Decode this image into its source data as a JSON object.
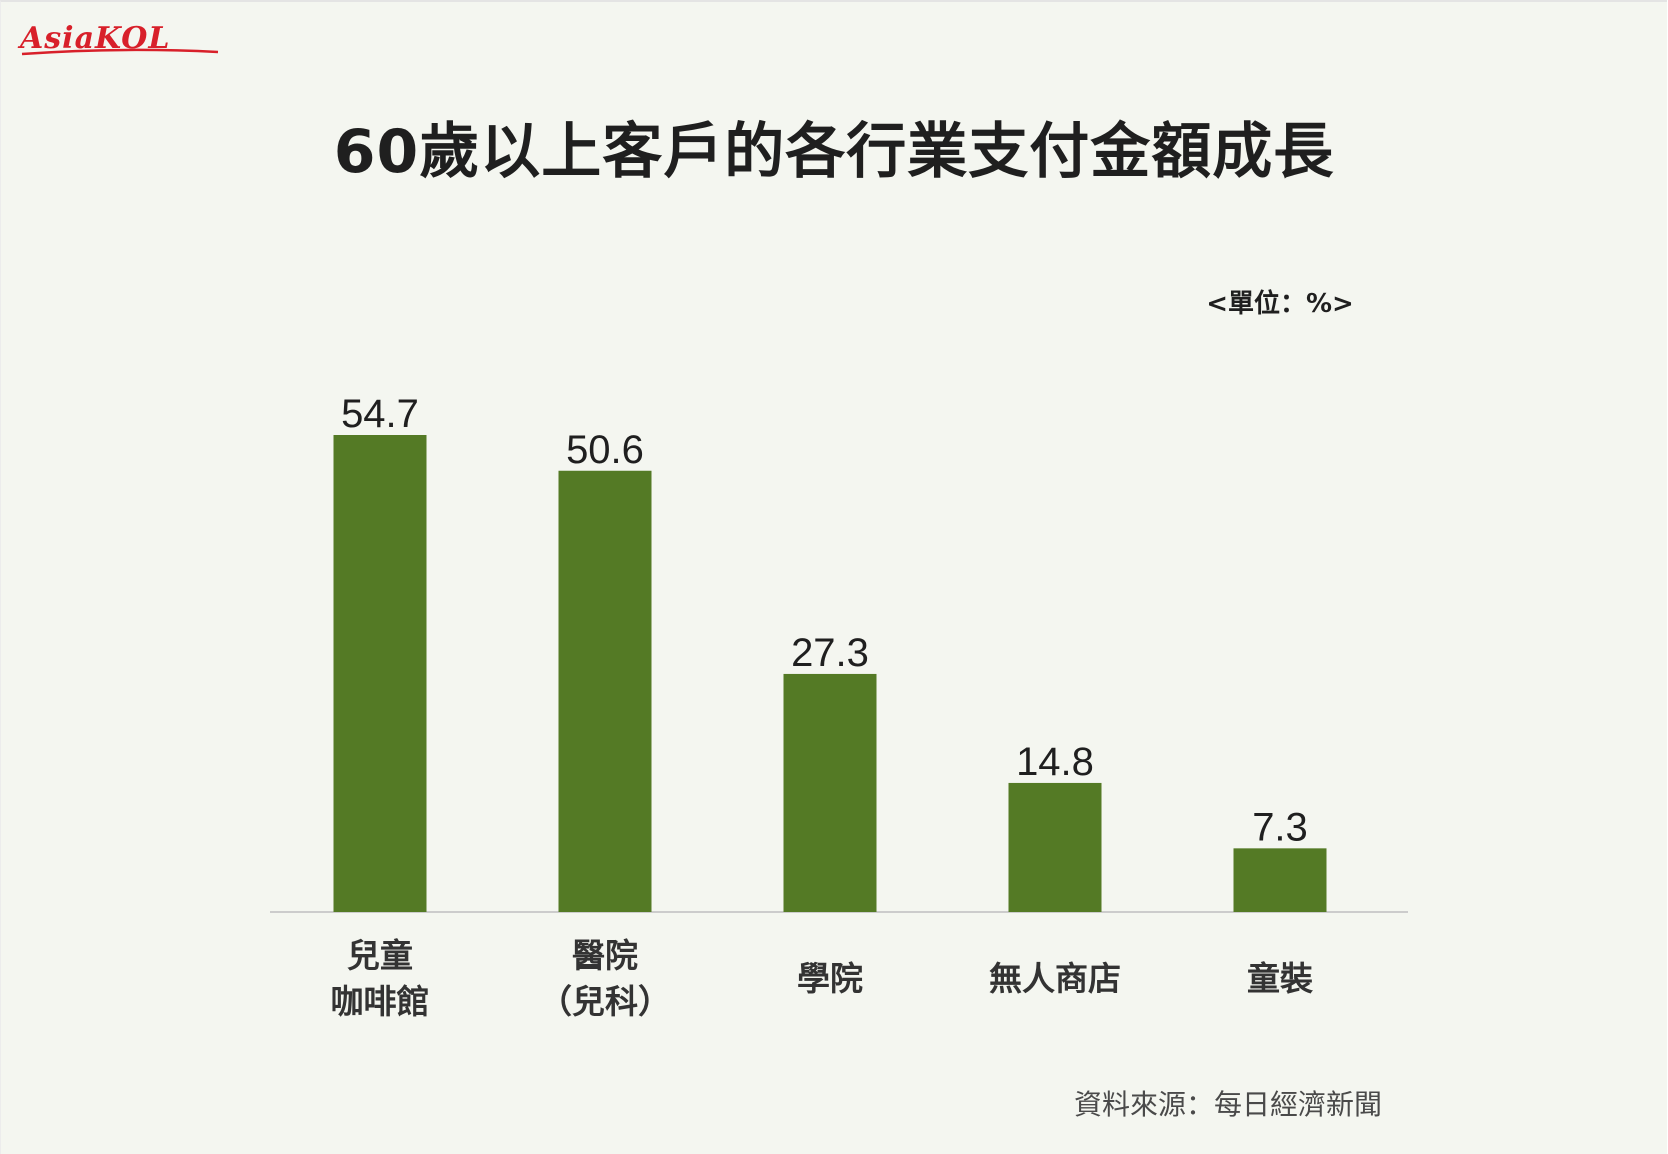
{
  "logo": {
    "text": "AsiaKOL",
    "color": "#d8202a"
  },
  "title": "60歲以上客戶的各行業支付金額成長",
  "unit_label": "<單位：%>",
  "source": "資料來源：每日經濟新聞",
  "colors": {
    "bar": "#547a25",
    "axis": "#cccccc",
    "background": "#f4f6f0"
  },
  "chart_data": {
    "type": "bar",
    "title": "60歲以上客戶的各行業支付金額成長",
    "unit": "%",
    "categories": [
      [
        "兒童",
        "咖啡館"
      ],
      [
        "醫院",
        "（兒科）"
      ],
      [
        "學院"
      ],
      [
        "無人商店"
      ],
      [
        "童裝"
      ]
    ],
    "values": [
      54.7,
      50.6,
      27.3,
      14.8,
      7.3
    ],
    "value_labels": [
      "54.7",
      "50.6",
      "27.3",
      "14.8",
      "7.3"
    ],
    "ylim": [
      0,
      54.7
    ],
    "grid": false,
    "legend": "none"
  }
}
